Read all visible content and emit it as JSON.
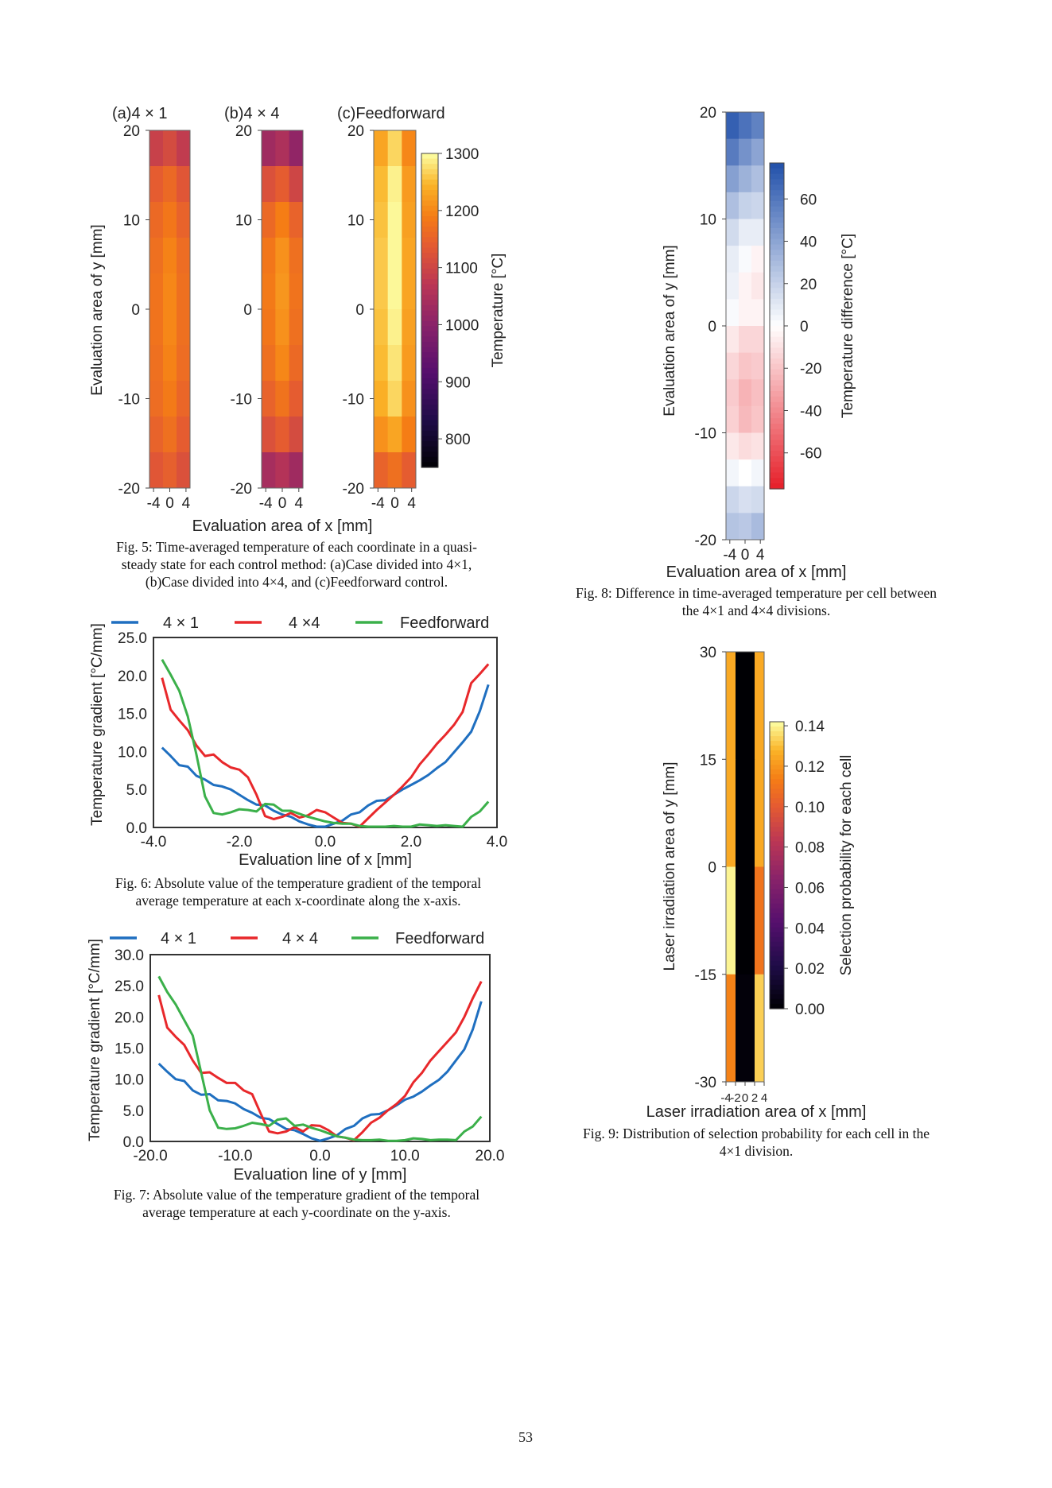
{
  "page_number": "53",
  "captions": {
    "fig5": [
      "Fig. 5: Time-averaged temperature of each coordinate in a quasi-",
      "steady state for each control method: (a)Case divided into 4×1,",
      "(b)Case divided into 4×4, and (c)Feedforward control."
    ],
    "fig6": [
      "Fig. 6: Absolute value of the temperature gradient of the temporal",
      "average temperature at each x-coordinate along the x-axis."
    ],
    "fig7": [
      "Fig. 7: Absolute value of the temperature gradient of the temporal",
      "average temperature at each y-coordinate on the y-axis."
    ],
    "fig8": [
      "Fig. 8: Difference in time-averaged temperature per cell between",
      "the 4×1 and 4×4 divisions."
    ],
    "fig9": [
      "Fig. 9: Distribution of selection probability for each cell in the",
      "4×1 division."
    ]
  },
  "chart_data": [
    {
      "id": "fig5",
      "type": "heatmap",
      "xlabel": "Evaluation area of x [mm]",
      "ylabel": "Evaluation area of y [mm]",
      "xlim": [
        -5,
        5
      ],
      "ylim": [
        -20,
        20
      ],
      "xticks": [
        -4,
        0,
        4
      ],
      "yticks": [
        20,
        10,
        0,
        -10,
        -20
      ],
      "colormap": "inferno",
      "colorbar": {
        "label": "Temperature [°C]",
        "clim": [
          750,
          1300
        ],
        "ticks": [
          1300,
          1200,
          1100,
          1000,
          900,
          800
        ]
      },
      "panels": [
        {
          "title": "(a)4 × 1",
          "values": [
            [
              1090,
              1110,
              1080
            ],
            [
              1140,
              1160,
              1130
            ],
            [
              1160,
              1180,
              1150
            ],
            [
              1170,
              1195,
              1165
            ],
            [
              1175,
              1200,
              1170
            ],
            [
              1175,
              1200,
              1170
            ],
            [
              1170,
              1195,
              1165
            ],
            [
              1165,
              1185,
              1155
            ],
            [
              1150,
              1170,
              1140
            ],
            [
              1130,
              1145,
              1120
            ]
          ]
        },
        {
          "title": "(b)4 × 4",
          "values": [
            [
              1030,
              1050,
              1010
            ],
            [
              1120,
              1140,
              1100
            ],
            [
              1160,
              1190,
              1150
            ],
            [
              1180,
              1210,
              1170
            ],
            [
              1185,
              1215,
              1175
            ],
            [
              1180,
              1210,
              1170
            ],
            [
              1170,
              1200,
              1160
            ],
            [
              1150,
              1175,
              1140
            ],
            [
              1120,
              1140,
              1110
            ],
            [
              1040,
              1060,
              1030
            ]
          ]
        },
        {
          "title": "(c)Feedforward",
          "values": [
            [
              1230,
              1270,
              1200
            ],
            [
              1250,
              1290,
              1220
            ],
            [
              1255,
              1295,
              1225
            ],
            [
              1260,
              1295,
              1230
            ],
            [
              1260,
              1295,
              1230
            ],
            [
              1255,
              1290,
              1225
            ],
            [
              1250,
              1280,
              1220
            ],
            [
              1240,
              1270,
              1210
            ],
            [
              1210,
              1230,
              1190
            ],
            [
              1150,
              1170,
              1140
            ]
          ]
        }
      ]
    },
    {
      "id": "fig6",
      "type": "line",
      "xlabel": "Evaluation line of x [mm]",
      "ylabel": "Temperature gradient [°C/mm]",
      "xlim": [
        -4,
        4
      ],
      "ylim": [
        0,
        25
      ],
      "xticks": [
        "-4.0",
        "-2.0",
        "0.0",
        "2.0",
        "4.0"
      ],
      "yticks": [
        "0.0",
        "5.0",
        "10.0",
        "15.0",
        "20.0",
        "25.0"
      ],
      "legend": "top",
      "x": [
        -3.8,
        -3.6,
        -3.4,
        -3.2,
        -3.0,
        -2.8,
        -2.6,
        -2.4,
        -2.2,
        -2.0,
        -1.8,
        -1.6,
        -1.4,
        -1.2,
        -1.0,
        -0.8,
        -0.6,
        -0.4,
        -0.2,
        0.0,
        0.2,
        0.4,
        0.6,
        0.8,
        1.0,
        1.2,
        1.4,
        1.6,
        1.8,
        2.0,
        2.2,
        2.4,
        2.6,
        2.8,
        3.0,
        3.2,
        3.4,
        3.6,
        3.8
      ],
      "series": [
        {
          "name": "4 × 1",
          "color": "#1f6fc0",
          "values": [
            10.5,
            9.4,
            8.2,
            8.0,
            6.8,
            6.3,
            5.6,
            5.4,
            5.0,
            4.3,
            3.6,
            3.0,
            2.9,
            2.2,
            1.7,
            1.4,
            0.8,
            0.4,
            0.1,
            0.1,
            0.5,
            0.9,
            1.7,
            2.0,
            2.9,
            3.5,
            3.6,
            4.3,
            5.0,
            5.6,
            6.2,
            6.9,
            7.8,
            8.6,
            9.9,
            11.2,
            12.6,
            15.3,
            18.8
          ]
        },
        {
          "name": "4 ×4",
          "color": "#e8282b",
          "values": [
            19.7,
            15.5,
            14.1,
            12.8,
            10.8,
            9.4,
            9.6,
            8.6,
            7.9,
            7.6,
            6.6,
            4.3,
            1.5,
            1.1,
            1.4,
            1.9,
            1.3,
            1.6,
            2.3,
            2.0,
            1.3,
            0.6,
            0.5,
            0.1,
            1.2,
            2.3,
            3.3,
            4.3,
            5.4,
            6.6,
            8.3,
            9.6,
            11.0,
            12.2,
            13.5,
            15.2,
            19.0,
            20.2,
            21.5
          ]
        },
        {
          "name": "Feedforward",
          "color": "#3bb04a",
          "values": [
            22.1,
            20.1,
            18.0,
            14.6,
            9.6,
            4.1,
            1.9,
            1.7,
            2.0,
            2.4,
            2.3,
            2.1,
            3.1,
            3.0,
            2.2,
            2.2,
            1.8,
            1.4,
            1.1,
            0.8,
            0.6,
            0.5,
            0.5,
            0.2,
            0.1,
            0.1,
            0.1,
            0.2,
            0.1,
            0.1,
            0.4,
            0.3,
            0.2,
            0.3,
            0.2,
            0.1,
            1.4,
            2.1,
            3.4
          ]
        }
      ]
    },
    {
      "id": "fig7",
      "type": "line",
      "xlabel": "Evaluation line of y [mm]",
      "ylabel": "Temperature gradient [°C/mm]",
      "xlim": [
        -20,
        20
      ],
      "ylim": [
        0,
        30
      ],
      "xticks": [
        "-20.0",
        "-10.0",
        "0.0",
        "10.0",
        "20.0"
      ],
      "yticks": [
        "0.0",
        "5.0",
        "10.0",
        "15.0",
        "20.0",
        "25.0",
        "30.0"
      ],
      "legend": "top",
      "x": [
        -19,
        -18,
        -17,
        -16,
        -15,
        -14,
        -13,
        -12,
        -11,
        -10,
        -9,
        -8,
        -7,
        -6,
        -5,
        -4,
        -3,
        -2,
        -1,
        0,
        1,
        2,
        3,
        4,
        5,
        6,
        7,
        8,
        9,
        10,
        11,
        12,
        13,
        14,
        15,
        16,
        17,
        18,
        19
      ],
      "series": [
        {
          "name": "4 × 1",
          "color": "#1f6fc0",
          "values": [
            12.5,
            11.2,
            10.0,
            9.7,
            8.2,
            7.5,
            7.6,
            6.6,
            6.5,
            6.1,
            5.2,
            4.6,
            3.8,
            3.6,
            2.8,
            2.0,
            1.8,
            1.2,
            0.5,
            0.1,
            0.5,
            1.0,
            2.0,
            2.5,
            3.7,
            4.3,
            4.4,
            5.0,
            5.8,
            6.7,
            7.2,
            8.0,
            9.0,
            9.9,
            11.2,
            13.0,
            14.8,
            18.0,
            22.5
          ]
        },
        {
          "name": "4 × 4",
          "color": "#e8282b",
          "values": [
            23.5,
            18.3,
            16.8,
            15.5,
            13.0,
            11.0,
            11.1,
            10.2,
            9.4,
            9.4,
            8.2,
            7.6,
            4.5,
            1.6,
            1.3,
            1.6,
            2.3,
            1.6,
            2.6,
            2.5,
            1.8,
            0.8,
            0.6,
            0.2,
            1.5,
            3.0,
            3.8,
            5.0,
            6.0,
            7.3,
            9.5,
            11.0,
            13.0,
            14.5,
            16.0,
            17.5,
            20.0,
            23.0,
            25.7
          ]
        },
        {
          "name": "Feedforward",
          "color": "#3bb04a",
          "values": [
            26.5,
            24.0,
            22.0,
            19.5,
            17.0,
            11.0,
            5.0,
            2.2,
            2.0,
            2.1,
            2.5,
            3.0,
            2.8,
            2.5,
            3.5,
            3.7,
            2.5,
            2.7,
            2.2,
            1.8,
            1.3,
            0.8,
            0.6,
            0.3,
            0.2,
            0.2,
            0.3,
            0.1,
            0.1,
            0.2,
            0.5,
            0.4,
            0.2,
            0.3,
            0.3,
            0.2,
            1.6,
            2.4,
            4.0
          ]
        }
      ]
    },
    {
      "id": "fig8",
      "type": "heatmap",
      "xlabel": "Evaluation area of x [mm]",
      "ylabel": "Evaluation area of y [mm]",
      "xlim": [
        -5,
        5
      ],
      "ylim": [
        -20,
        20
      ],
      "xticks": [
        -4,
        0,
        4
      ],
      "yticks": [
        20,
        10,
        0,
        -10,
        -20
      ],
      "colormap": "bwr",
      "colorbar": {
        "label": "Temperature difference [°C]",
        "clim": [
          -77,
          77
        ],
        "ticks": [
          60,
          40,
          20,
          0,
          -20,
          -40,
          -60
        ]
      },
      "values": [
        [
          70,
          62,
          55
        ],
        [
          58,
          48,
          40
        ],
        [
          42,
          34,
          28
        ],
        [
          28,
          20,
          18
        ],
        [
          16,
          8,
          8
        ],
        [
          8,
          2,
          -4
        ],
        [
          6,
          -4,
          -8
        ],
        [
          2,
          -4,
          -4
        ],
        [
          -8,
          -14,
          -14
        ],
        [
          -14,
          -20,
          -18
        ],
        [
          -18,
          -26,
          -22
        ],
        [
          -16,
          -24,
          -20
        ],
        [
          -8,
          -12,
          -10
        ],
        [
          4,
          0,
          4
        ],
        [
          18,
          14,
          16
        ],
        [
          26,
          24,
          30
        ]
      ]
    },
    {
      "id": "fig9",
      "type": "heatmap",
      "xlabel": "Laser irradiation area of x [mm]",
      "ylabel": "Laser irradiation area of y [mm]",
      "xlim": [
        -4,
        4
      ],
      "ylim": [
        -30,
        30
      ],
      "xticks": [
        -4,
        -2,
        0,
        2,
        4
      ],
      "yticks": [
        30,
        15,
        0,
        -15,
        -30
      ],
      "colormap": "inferno",
      "colorbar": {
        "label": "Selection probability for each cell",
        "clim": [
          0,
          0.142
        ],
        "ticks": [
          "0.14",
          "0.12",
          "0.10",
          "0.08",
          "0.06",
          "0.04",
          "0.02",
          "0.00"
        ]
      },
      "values": [
        [
          0.125,
          0.0,
          0.0,
          0.125
        ],
        [
          0.125,
          0.0,
          0.0,
          0.125
        ],
        [
          0.14,
          0.0,
          0.0,
          0.11
        ],
        [
          0.115,
          0.002,
          0.002,
          0.133
        ]
      ]
    }
  ]
}
